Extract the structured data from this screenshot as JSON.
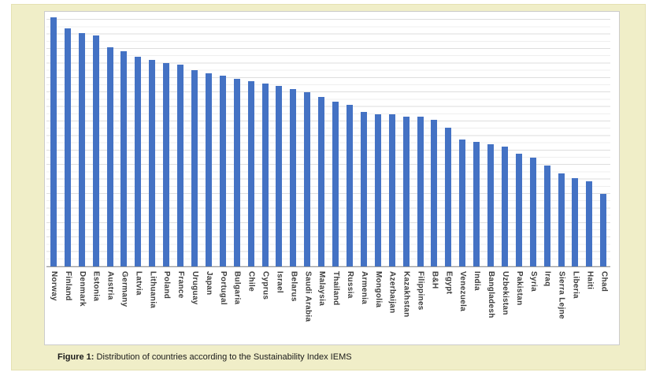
{
  "figure": {
    "caption_label": "Figure 1:",
    "caption_text": " Distribution of countries according to the Sustainability Index IEMS"
  },
  "colors": {
    "bar": "#4472c4",
    "panel_background": "#f0eec8",
    "plot_background": "#ffffff",
    "gridline_minor": "#efefef",
    "gridline_major": "#dedede",
    "axis_line": "#9b9b9b",
    "label_text": "#3d3d3d"
  },
  "chart_data": {
    "type": "bar",
    "title": "",
    "xlabel": "",
    "ylabel": "",
    "legend": "none",
    "grid": "horizontal",
    "y_axis_tick_labels_visible": false,
    "value_note": "Value axis has no visible tick labels; values are estimated bar heights as percent of plot-area height (axis max = 100).",
    "ylim": [
      0,
      100
    ],
    "label_rotation": "vertical",
    "categories": [
      "Norway",
      "Finland",
      "Denmark",
      "Estonia",
      "Austria",
      "Germany",
      "Latvia",
      "Lithuania",
      "Poland",
      "France",
      "Uruguay",
      "Japan",
      "Portugal",
      "Bulgaria",
      "Chile",
      "Cyprus",
      "Israel",
      "Belarus",
      "Saudi Arabia",
      "Malaysia",
      "Thailand",
      "Russia",
      "Armenia",
      "Mongolia",
      "Azerbaijan",
      "Kazakhstan",
      "Filippines",
      "B&H",
      "Egypt",
      "Venezuela",
      "India",
      "Bangladesh",
      "Uzbekistan",
      "Pakistan",
      "Syria",
      "Iraq",
      "Sierra Lejne",
      "Liberia",
      "Haiti",
      "Chad"
    ],
    "series": [
      {
        "name": "Sustainability Index IEMS",
        "values": [
          98.4,
          94.1,
          92.2,
          91.2,
          86.7,
          85.2,
          82.9,
          81.7,
          80.5,
          79.6,
          77.5,
          76.4,
          75.5,
          74.3,
          73.3,
          72.3,
          71.2,
          70.0,
          68.9,
          66.9,
          65.0,
          63.9,
          61.2,
          60.2,
          60.2,
          59.1,
          59.1,
          57.9,
          54.7,
          50.3,
          49.3,
          48.2,
          47.4,
          44.6,
          43.1,
          40.0,
          36.9,
          35.0,
          33.7,
          28.6
        ]
      }
    ]
  }
}
